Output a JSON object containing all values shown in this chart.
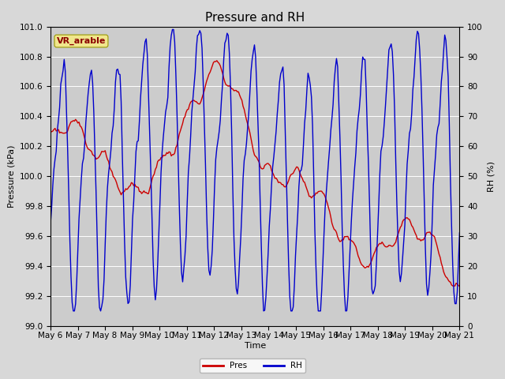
{
  "title": "Pressure and RH",
  "xlabel": "Time",
  "ylabel_left": "Pressure (kPa)",
  "ylabel_right": "RH (%)",
  "station_label": "VR_arable",
  "pres_ylim": [
    99.0,
    101.0
  ],
  "rh_ylim": [
    0,
    100
  ],
  "pres_yticks": [
    99.0,
    99.2,
    99.4,
    99.6,
    99.8,
    100.0,
    100.2,
    100.4,
    100.6,
    100.8,
    101.0
  ],
  "rh_yticks": [
    0,
    10,
    20,
    30,
    40,
    50,
    60,
    70,
    80,
    90,
    100
  ],
  "xtick_labels": [
    "May 6",
    "May 7",
    "May 8",
    "May 9",
    "May 10",
    "May 11",
    "May 12",
    "May 13",
    "May 14",
    "May 15",
    "May 16",
    "May 17",
    "May 18",
    "May 19",
    "May 20",
    "May 21"
  ],
  "pres_color": "#cc0000",
  "rh_color": "#0000cc",
  "fig_bg_color": "#d8d8d8",
  "plot_bg_color": "#cccccc",
  "legend_pres": "Pres",
  "legend_rh": "RH",
  "title_fontsize": 11,
  "label_fontsize": 8,
  "tick_fontsize": 7.5,
  "station_label_bg": "#f0e68c",
  "station_label_color": "#8b0000",
  "station_label_fontsize": 8,
  "linewidth": 1.0
}
